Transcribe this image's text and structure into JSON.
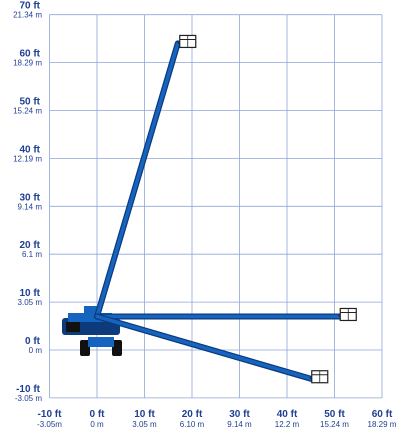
{
  "chart_data": {
    "type": "diagram",
    "x_axis": {
      "range_ft": [
        -10,
        60
      ],
      "ticks": [
        {
          "ft": -10,
          "ft_label": "-10 ft",
          "m_label": "-3.05m"
        },
        {
          "ft": 0,
          "ft_label": "0 ft",
          "m_label": "0 m"
        },
        {
          "ft": 10,
          "ft_label": "10 ft",
          "m_label": "3.05 m"
        },
        {
          "ft": 20,
          "ft_label": "20 ft",
          "m_label": "6.10 m"
        },
        {
          "ft": 30,
          "ft_label": "30 ft",
          "m_label": "9.14 m"
        },
        {
          "ft": 40,
          "ft_label": "40 ft",
          "m_label": "12.2 m"
        },
        {
          "ft": 50,
          "ft_label": "50 ft",
          "m_label": "15.24 m"
        },
        {
          "ft": 60,
          "ft_label": "60 ft",
          "m_label": "18.29 m"
        }
      ]
    },
    "y_axis": {
      "range_ft": [
        -10,
        70
      ],
      "ticks": [
        {
          "ft": 70,
          "ft_label": "70 ft",
          "m_label": "21.34 m"
        },
        {
          "ft": 60,
          "ft_label": "60 ft",
          "m_label": "18.29 m"
        },
        {
          "ft": 50,
          "ft_label": "50 ft",
          "m_label": "15.24 m"
        },
        {
          "ft": 40,
          "ft_label": "40 ft",
          "m_label": "12.19 m"
        },
        {
          "ft": 30,
          "ft_label": "30 ft",
          "m_label": "9.14 m"
        },
        {
          "ft": 20,
          "ft_label": "20 ft",
          "m_label": "6.1 m"
        },
        {
          "ft": 10,
          "ft_label": "10 ft",
          "m_label": "3.05 m"
        },
        {
          "ft": 0,
          "ft_label": "0 ft",
          "m_label": "0 m"
        },
        {
          "ft": -10,
          "ft_label": "-10 ft",
          "m_label": "-3.05 m"
        }
      ]
    },
    "grid": true,
    "boom_positions": [
      {
        "pivot_ft": [
          0,
          7
        ],
        "tip_ft": [
          17,
          64
        ]
      },
      {
        "pivot_ft": [
          0,
          7
        ],
        "tip_ft": [
          51,
          7
        ]
      },
      {
        "pivot_ft": [
          0,
          7
        ],
        "tip_ft": [
          45,
          -6
        ]
      }
    ],
    "colors": {
      "boom": "#1565c0",
      "boom_dark": "#0d3a7a",
      "grid": "#8fa6d6",
      "text": "#1f3f93"
    },
    "icon_names": [
      "aerial-lift-machine-icon",
      "platform-basket-icon"
    ]
  }
}
